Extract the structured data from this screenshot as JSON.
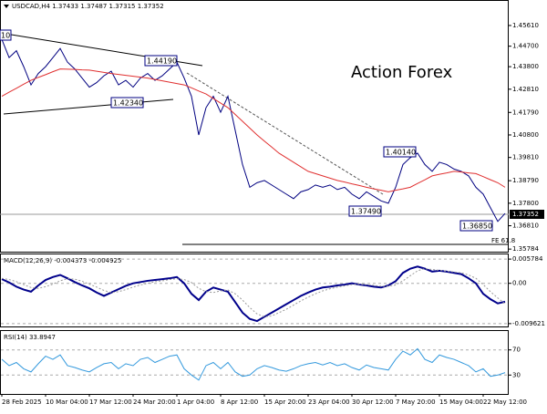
{
  "header": "USDCAD,H4  1.37433 1.37487 1.37315 1.37352",
  "watermark": "Action Forex",
  "chart_data": [
    {
      "type": "line",
      "annotations": [
        "10",
        "1.44190",
        "1.42340",
        "1.40140",
        "1.37490",
        "1.36850",
        "FE 61.8",
        "1.37352"
      ],
      "ylim": [
        1.3567,
        1.4669
      ],
      "yticks": [
        {
          "value": 1.4561,
          "label": "1.45610"
        },
        {
          "value": 1.447,
          "label": "1.44700"
        },
        {
          "value": 1.438,
          "label": "1.43800"
        },
        {
          "value": 1.4281,
          "label": "1.42810"
        },
        {
          "value": 1.4179,
          "label": "1.41790"
        },
        {
          "value": 1.408,
          "label": "1.40800"
        },
        {
          "value": 1.3981,
          "label": "1.39810"
        },
        {
          "value": 1.3879,
          "label": "1.38790"
        },
        {
          "value": 1.378,
          "label": "1.37800"
        },
        {
          "value": 1.3681,
          "label": "1.36810"
        },
        1.35784
      ],
      "grid": false,
      "series": [
        {
          "color": "#000080",
          "width": 1,
          "dash": false,
          "values": [
            1.45,
            1.442,
            1.445,
            1.438,
            1.43,
            1.435,
            1.438,
            1.442,
            1.446,
            1.44,
            1.437,
            1.433,
            1.429,
            1.431,
            1.434,
            1.436,
            1.43,
            1.432,
            1.429,
            1.433,
            1.435,
            1.432,
            1.434,
            1.437,
            1.44,
            1.433,
            1.425,
            1.408,
            1.42,
            1.425,
            1.418,
            1.425,
            1.41,
            1.395,
            1.385,
            1.387,
            1.388,
            1.386,
            1.384,
            1.382,
            1.38,
            1.383,
            1.384,
            1.386,
            1.385,
            1.386,
            1.384,
            1.385,
            1.382,
            1.38,
            1.383,
            1.381,
            1.379,
            1.378,
            1.385,
            1.395,
            1.398,
            1.4,
            1.395,
            1.392,
            1.396,
            1.395,
            1.393,
            1.392,
            1.39,
            1.385,
            1.382,
            1.376,
            1.37,
            1.3735
          ]
        },
        {
          "color": "#e03030",
          "width": 1,
          "dash": false,
          "values": [
            1.425,
            1.4268,
            1.4285,
            1.4303,
            1.432,
            1.4333,
            1.4345,
            1.4358,
            1.437,
            1.4369,
            1.4368,
            1.4366,
            1.4365,
            1.436,
            1.4355,
            1.435,
            1.4346,
            1.4342,
            1.4338,
            1.4334,
            1.433,
            1.4324,
            1.4318,
            1.4312,
            1.4306,
            1.43,
            1.4287,
            1.4273,
            1.426,
            1.424,
            1.422,
            1.42,
            1.417,
            1.414,
            1.411,
            1.408,
            1.4053,
            1.4027,
            1.4,
            1.398,
            1.396,
            1.394,
            1.392,
            1.391,
            1.39,
            1.389,
            1.388,
            1.3873,
            1.3865,
            1.3858,
            1.385,
            1.3843,
            1.3837,
            1.383,
            1.3837,
            1.3843,
            1.385,
            1.3867,
            1.3883,
            1.39,
            1.3907,
            1.3913,
            1.392,
            1.3917,
            1.3913,
            1.391,
            1.3897,
            1.3883,
            1.387,
            1.385
          ]
        }
      ]
    },
    {
      "type": "line",
      "title": "MACD(12,26,9) -0.004373 -0.004925",
      "ylim": [
        -0.0103,
        0.0069
      ],
      "yticks": [
        0.005784,
        {
          "value": 0,
          "label": "0.00"
        },
        -0.009621
      ],
      "grid": true,
      "series": [
        {
          "color": "#00008b",
          "width": 2,
          "dash": false,
          "values": [
            0.001,
            0.0002,
            -0.0008,
            -0.0015,
            -0.002,
            -0.0005,
            0.0008,
            0.0015,
            0.002,
            0.0012,
            0.0003,
            -0.0005,
            -0.0012,
            -0.0022,
            -0.003,
            -0.0022,
            -0.0014,
            -0.0006,
            0,
            0.0003,
            0.0006,
            0.0008,
            0.001,
            0.0012,
            0.0015,
            0,
            -0.0025,
            -0.004,
            -0.002,
            -0.001,
            -0.0015,
            -0.002,
            -0.0045,
            -0.007,
            -0.0085,
            -0.009,
            -0.008,
            -0.007,
            -0.006,
            -0.005,
            -0.004,
            -0.003,
            -0.0022,
            -0.0015,
            -0.001,
            -0.0008,
            -0.0005,
            -0.0003,
            0,
            -0.0003,
            -0.0005,
            -0.0008,
            -0.001,
            -0.0005,
            0.0005,
            0.0025,
            0.0035,
            0.004,
            0.0035,
            0.0028,
            0.003,
            0.0028,
            0.0025,
            0.0022,
            0.0012,
            0,
            -0.0025,
            -0.0038,
            -0.0048,
            -0.0044
          ]
        },
        {
          "color": "#999999",
          "width": 1,
          "dash": true,
          "values": [
            0.0012,
            0.0009,
            0.0004,
            -0.0003,
            -0.001,
            -0.0012,
            -0.0008,
            -0.0002,
            0.0006,
            0.0011,
            0.001,
            0.0005,
            -0.0002,
            -0.0009,
            -0.0017,
            -0.0022,
            -0.002,
            -0.0015,
            -0.0009,
            -0.0004,
            0,
            0.0004,
            0.0006,
            0.0009,
            0.0011,
            0.0009,
            0.0002,
            -0.0012,
            -0.002,
            -0.0022,
            -0.0018,
            -0.0016,
            -0.0025,
            -0.004,
            -0.0058,
            -0.0073,
            -0.008,
            -0.0078,
            -0.007,
            -0.0062,
            -0.0052,
            -0.0042,
            -0.0033,
            -0.0025,
            -0.0018,
            -0.0013,
            -0.0009,
            -0.0006,
            -0.0003,
            -0.0002,
            -0.0003,
            -0.0005,
            -0.0007,
            -0.0007,
            -0.0004,
            0.0006,
            0.0018,
            0.003,
            0.0035,
            0.0033,
            0.0031,
            0.0029,
            0.0027,
            0.0025,
            0.002,
            0.0012,
            -0.0003,
            -0.002,
            -0.0035,
            -0.0049
          ]
        }
      ]
    },
    {
      "type": "line",
      "title": "RSI(14) 33.8947",
      "ylim": [
        0,
        100
      ],
      "yticks": [
        70,
        30
      ],
      "grid": true,
      "categories": [
        "28 Feb 2025",
        null,
        null,
        null,
        null,
        null,
        "10 Mar 04:00",
        null,
        null,
        null,
        null,
        null,
        "17 Mar 12:00",
        null,
        null,
        null,
        null,
        null,
        "24 Mar 20:00",
        null,
        null,
        null,
        null,
        null,
        "1 Apr 04:00",
        null,
        null,
        null,
        null,
        null,
        "8 Apr 12:00",
        null,
        null,
        null,
        null,
        null,
        "15 Apr 20:00",
        null,
        null,
        null,
        null,
        null,
        "23 Apr 04:00",
        null,
        null,
        null,
        null,
        null,
        "30 Apr 12:00",
        null,
        null,
        null,
        null,
        null,
        "7 May 20:00",
        null,
        null,
        null,
        null,
        null,
        "15 May 04:00",
        null,
        null,
        null,
        null,
        null,
        "22 May 12:00",
        null,
        null,
        null
      ],
      "series": [
        {
          "color": "#3399dd",
          "width": 1,
          "dash": false,
          "values": [
            55,
            45,
            50,
            40,
            35,
            48,
            60,
            55,
            62,
            45,
            42,
            38,
            35,
            42,
            48,
            50,
            40,
            48,
            45,
            55,
            58,
            50,
            55,
            60,
            62,
            40,
            30,
            22,
            45,
            50,
            40,
            50,
            35,
            28,
            30,
            40,
            45,
            42,
            38,
            36,
            40,
            45,
            48,
            50,
            46,
            50,
            45,
            48,
            42,
            38,
            46,
            42,
            40,
            38,
            55,
            68,
            62,
            72,
            55,
            50,
            62,
            58,
            55,
            50,
            45,
            35,
            40,
            28,
            30,
            33.9
          ]
        }
      ]
    }
  ]
}
